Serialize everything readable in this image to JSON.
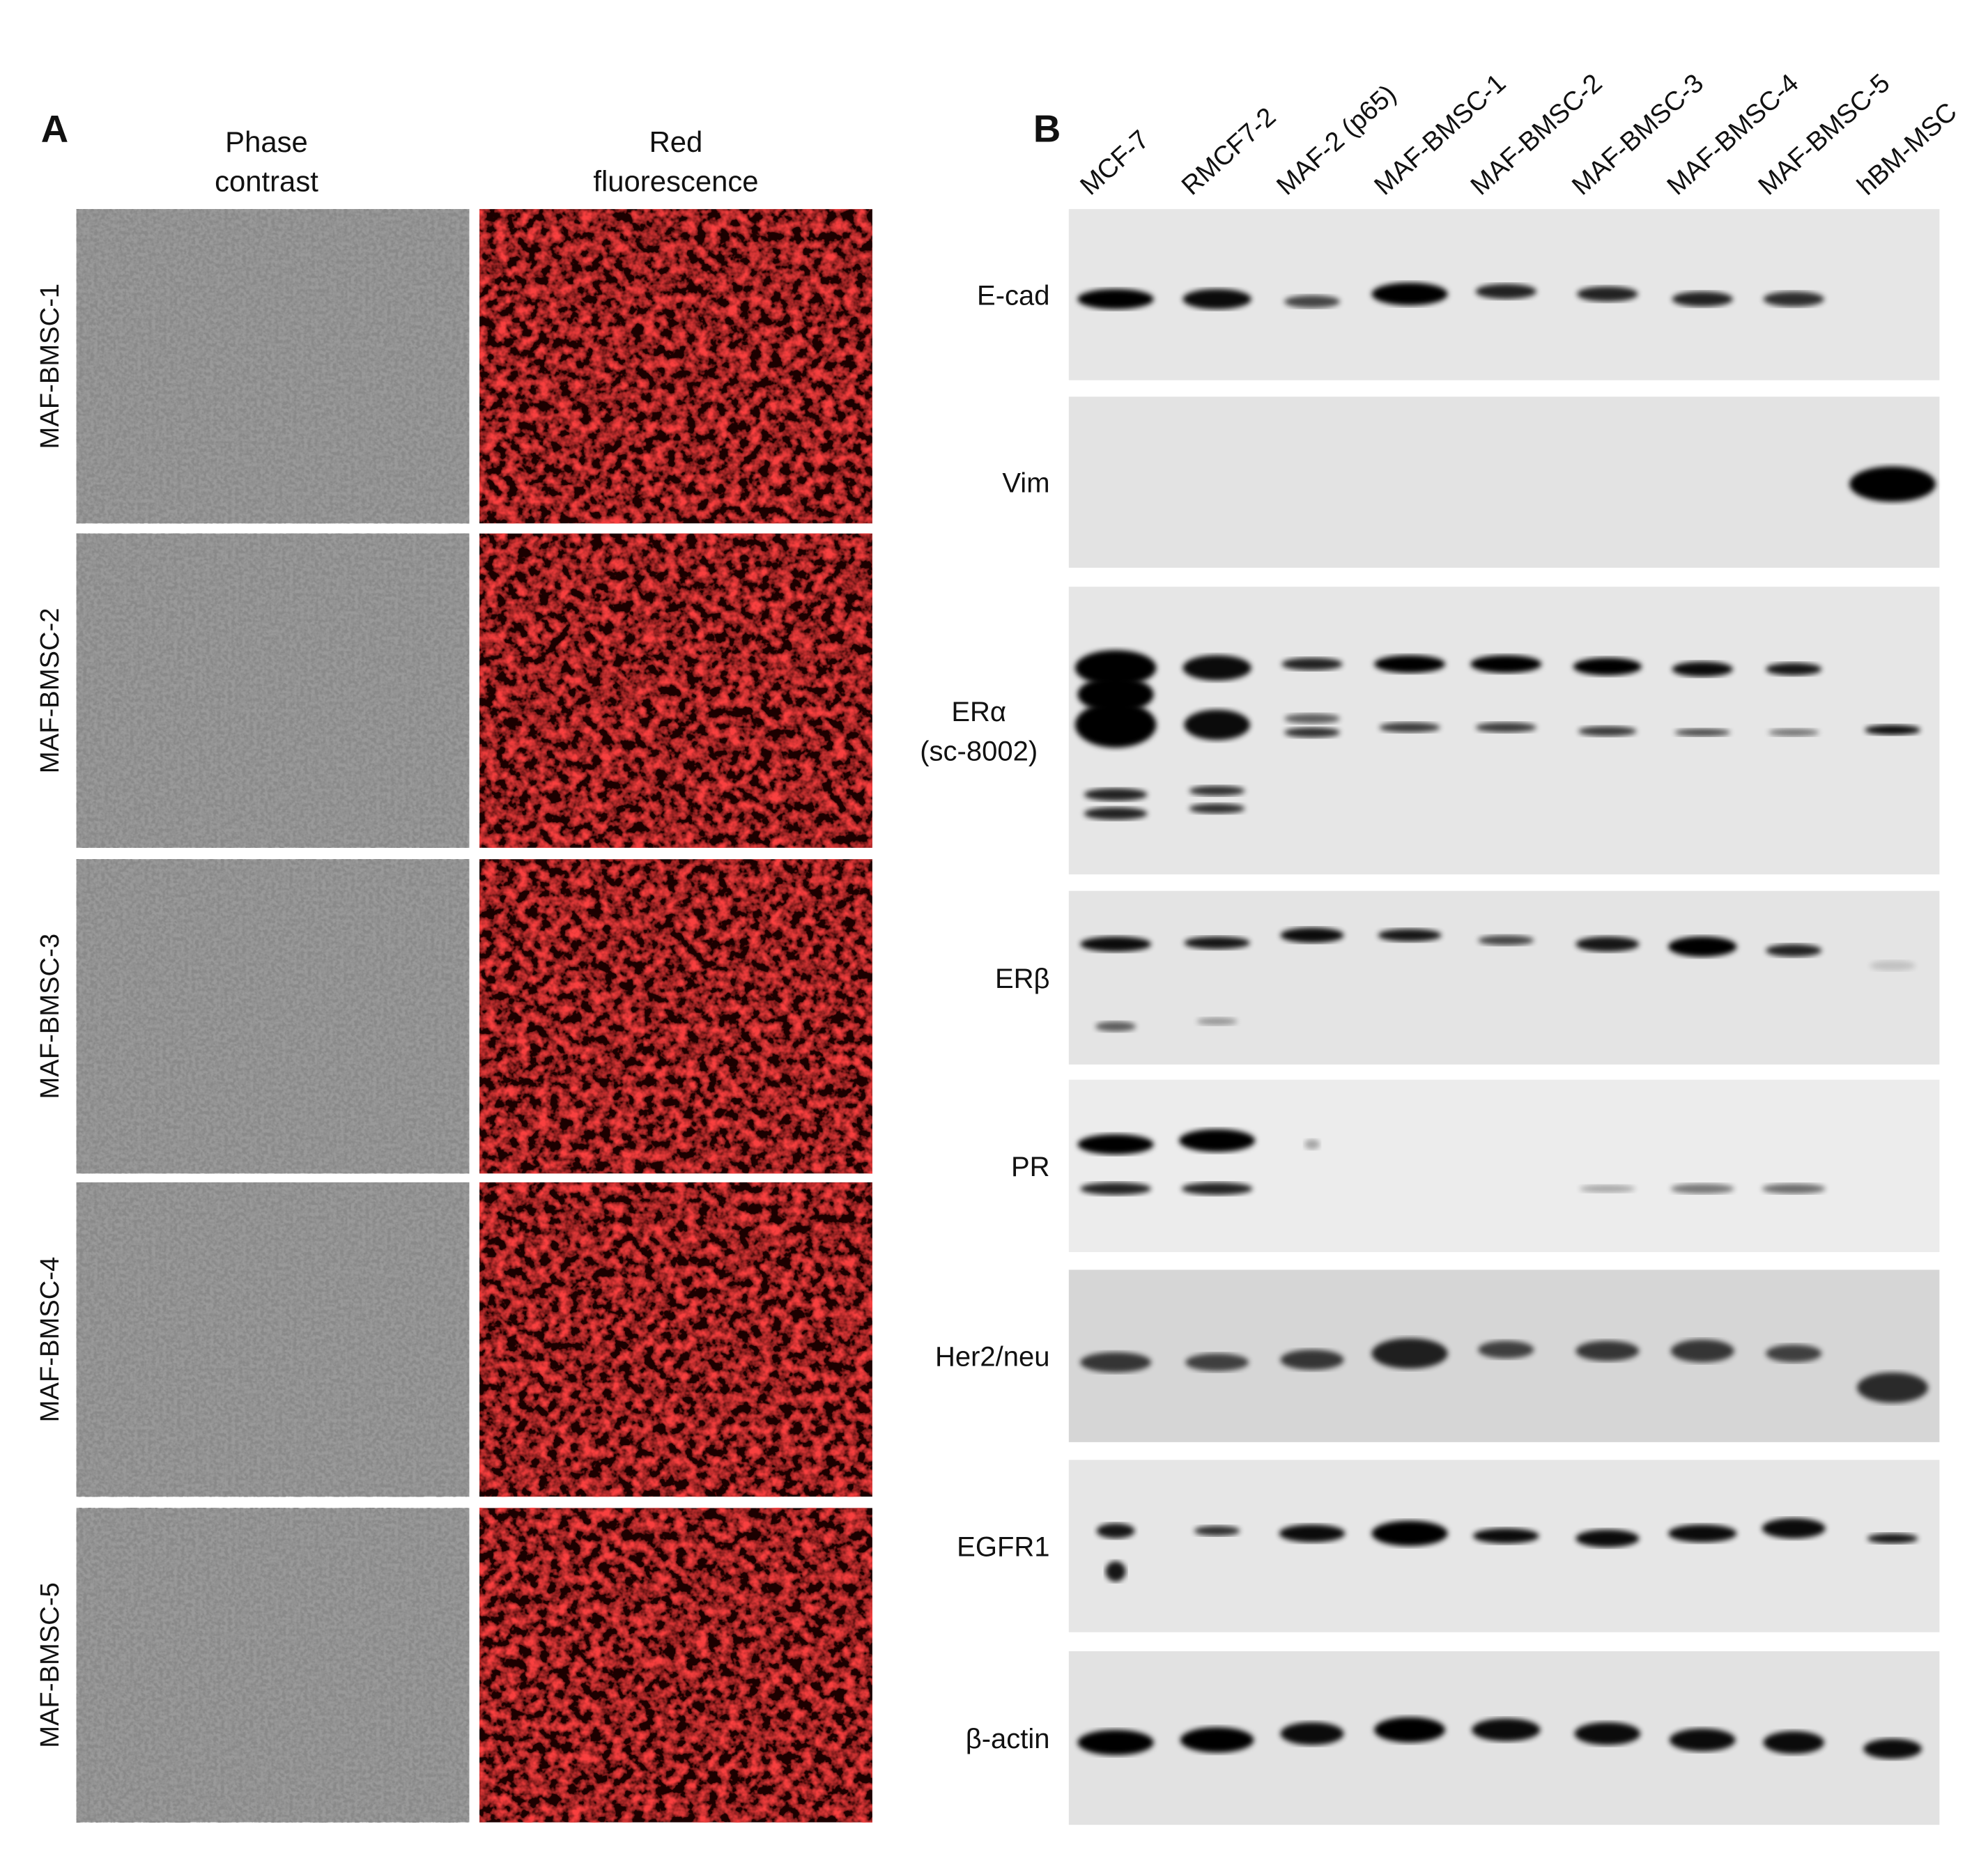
{
  "panel_a": {
    "label": "A",
    "columns": [
      [
        "Phase",
        "contrast"
      ],
      [
        "Red",
        "fluorescence"
      ]
    ],
    "rows": [
      "MAF-BMSC-1",
      "MAF-BMSC-2",
      "MAF-BMSC-3",
      "MAF-BMSC-4",
      "MAF-BMSC-5"
    ]
  },
  "panel_b": {
    "label": "B",
    "lanes": [
      "MCF-7",
      "RMCF7-2",
      "MAF-2 (p65)",
      "MAF-BMSC-1",
      "MAF-BMSC-2",
      "MAF-BMSC-3",
      "MAF-BMSC-4",
      "MAF-BMSC-5",
      "hBM-MSC"
    ],
    "blots": [
      [
        "E-cad"
      ],
      [
        "Vim"
      ],
      [
        "ERα",
        "(sc-8002)"
      ],
      [
        "ERβ"
      ],
      [
        "PR"
      ],
      [
        "Her2/neu"
      ],
      [
        "EGFR1"
      ],
      [
        "β-actin"
      ]
    ]
  }
}
